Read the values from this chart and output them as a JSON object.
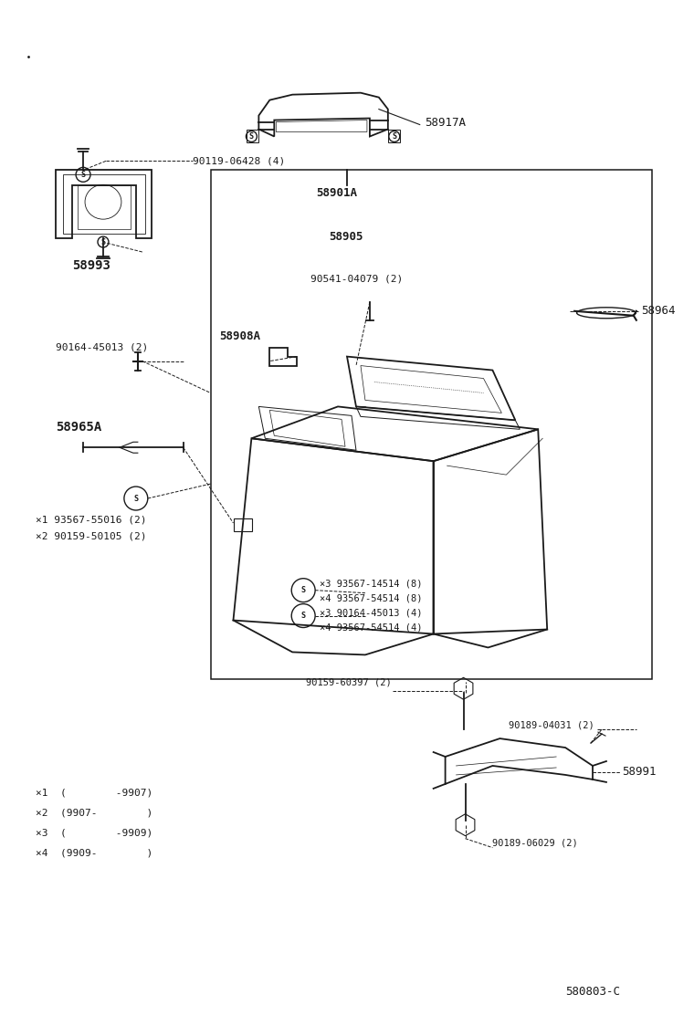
{
  "bg_color": "#ffffff",
  "fig_width": 7.6,
  "fig_height": 11.12,
  "dpi": 100,
  "diagram_code": "580803-C",
  "notes": [
    "×1  (        -9907)",
    "×2  (9907-        )",
    "×3  (        -9909)",
    "×4  (9909-        )"
  ],
  "color": "#1a1a1a"
}
